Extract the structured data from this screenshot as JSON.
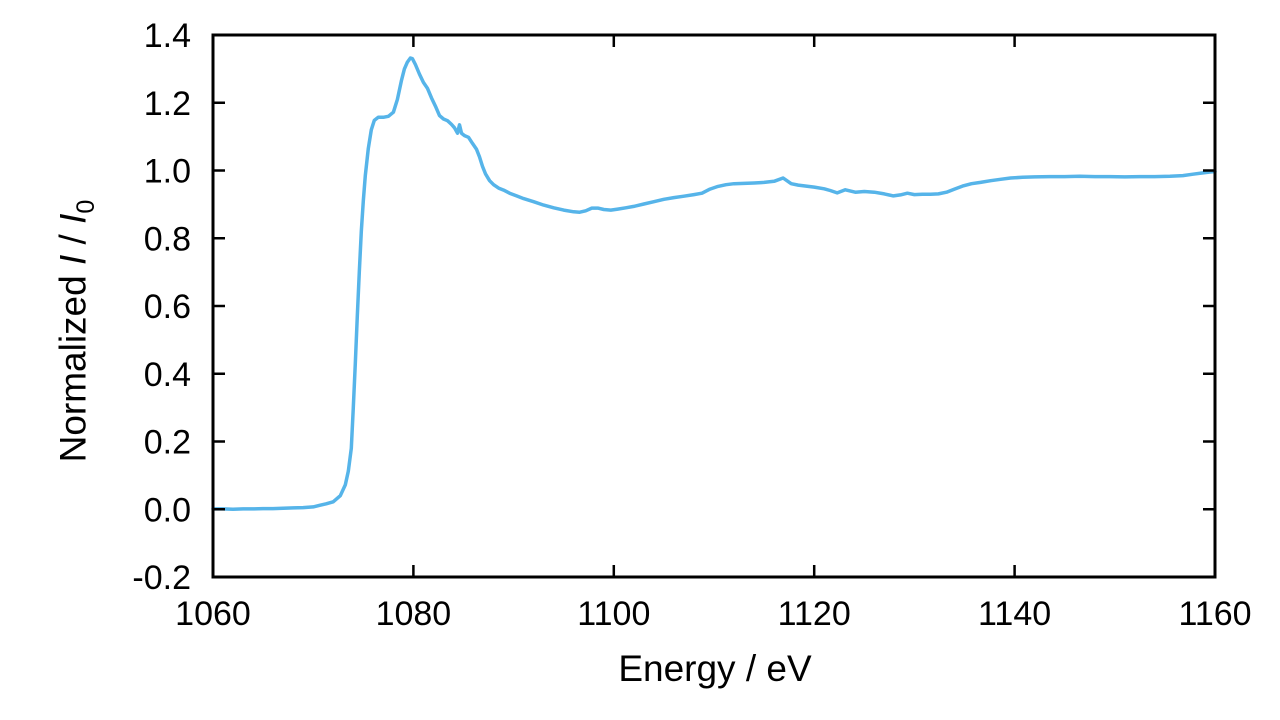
{
  "figure": {
    "background": "#ffffff",
    "xlabel": "Energy / eV",
    "ylabel_parts": {
      "prefix": "Normalized ",
      "i1": "I",
      "slash": " / ",
      "i2": "I",
      "sub": "0"
    }
  },
  "chart_data": {
    "type": "line",
    "title": "",
    "xlabel": "Energy / eV",
    "ylabel": "Normalized I / I0",
    "xlim": [
      1060,
      1160
    ],
    "ylim": [
      -0.2,
      1.4
    ],
    "x_ticks": [
      1060,
      1080,
      1100,
      1120,
      1140,
      1160
    ],
    "y_ticks": [
      -0.2,
      0.0,
      0.2,
      0.4,
      0.6,
      0.8,
      1.0,
      1.2,
      1.4
    ],
    "grid": false,
    "legend": "none",
    "line_color": "#56B4E9",
    "frame_color": "#000000",
    "series": [
      {
        "name": "normalized-absorption-spectrum",
        "points": [
          [
            1060.0,
            0.001
          ],
          [
            1061.0,
            0.001
          ],
          [
            1062.0,
            0.0
          ],
          [
            1063.0,
            0.001
          ],
          [
            1064.0,
            0.001
          ],
          [
            1065.0,
            0.002
          ],
          [
            1066.0,
            0.002
          ],
          [
            1067.0,
            0.003
          ],
          [
            1068.0,
            0.004
          ],
          [
            1069.0,
            0.005
          ],
          [
            1070.0,
            0.007
          ],
          [
            1070.7,
            0.012
          ],
          [
            1071.3,
            0.016
          ],
          [
            1072.0,
            0.022
          ],
          [
            1072.7,
            0.04
          ],
          [
            1073.2,
            0.072
          ],
          [
            1073.5,
            0.112
          ],
          [
            1073.8,
            0.18
          ],
          [
            1074.0,
            0.3
          ],
          [
            1074.2,
            0.43
          ],
          [
            1074.4,
            0.57
          ],
          [
            1074.6,
            0.7
          ],
          [
            1074.8,
            0.82
          ],
          [
            1075.0,
            0.91
          ],
          [
            1075.2,
            0.985
          ],
          [
            1075.5,
            1.065
          ],
          [
            1075.8,
            1.12
          ],
          [
            1076.1,
            1.148
          ],
          [
            1076.5,
            1.157
          ],
          [
            1077.0,
            1.157
          ],
          [
            1077.5,
            1.16
          ],
          [
            1078.0,
            1.172
          ],
          [
            1078.4,
            1.21
          ],
          [
            1078.8,
            1.265
          ],
          [
            1079.1,
            1.3
          ],
          [
            1079.4,
            1.32
          ],
          [
            1079.7,
            1.332
          ],
          [
            1079.9,
            1.33
          ],
          [
            1080.2,
            1.313
          ],
          [
            1080.6,
            1.285
          ],
          [
            1081.0,
            1.26
          ],
          [
            1081.4,
            1.243
          ],
          [
            1081.8,
            1.215
          ],
          [
            1082.2,
            1.19
          ],
          [
            1082.6,
            1.162
          ],
          [
            1083.0,
            1.152
          ],
          [
            1083.4,
            1.147
          ],
          [
            1083.8,
            1.136
          ],
          [
            1084.1,
            1.126
          ],
          [
            1084.4,
            1.11
          ],
          [
            1084.6,
            1.135
          ],
          [
            1084.8,
            1.11
          ],
          [
            1085.1,
            1.103
          ],
          [
            1085.5,
            1.098
          ],
          [
            1085.9,
            1.08
          ],
          [
            1086.3,
            1.063
          ],
          [
            1086.6,
            1.04
          ],
          [
            1086.9,
            1.012
          ],
          [
            1087.2,
            0.99
          ],
          [
            1087.6,
            0.97
          ],
          [
            1088.0,
            0.958
          ],
          [
            1088.5,
            0.948
          ],
          [
            1089.0,
            0.942
          ],
          [
            1089.6,
            0.933
          ],
          [
            1090.3,
            0.925
          ],
          [
            1091.0,
            0.917
          ],
          [
            1092.0,
            0.908
          ],
          [
            1093.0,
            0.898
          ],
          [
            1094.0,
            0.89
          ],
          [
            1095.0,
            0.883
          ],
          [
            1096.0,
            0.878
          ],
          [
            1096.6,
            0.877
          ],
          [
            1097.2,
            0.881
          ],
          [
            1097.8,
            0.889
          ],
          [
            1098.4,
            0.889
          ],
          [
            1099.0,
            0.885
          ],
          [
            1099.7,
            0.883
          ],
          [
            1100.4,
            0.886
          ],
          [
            1101.2,
            0.89
          ],
          [
            1102.0,
            0.894
          ],
          [
            1103.0,
            0.901
          ],
          [
            1104.0,
            0.908
          ],
          [
            1105.0,
            0.915
          ],
          [
            1106.0,
            0.92
          ],
          [
            1107.0,
            0.924
          ],
          [
            1108.0,
            0.929
          ],
          [
            1108.8,
            0.933
          ],
          [
            1109.6,
            0.945
          ],
          [
            1110.4,
            0.953
          ],
          [
            1111.2,
            0.958
          ],
          [
            1112.0,
            0.961
          ],
          [
            1113.0,
            0.962
          ],
          [
            1114.0,
            0.963
          ],
          [
            1115.0,
            0.965
          ],
          [
            1116.0,
            0.968
          ],
          [
            1116.9,
            0.978
          ],
          [
            1117.7,
            0.961
          ],
          [
            1118.4,
            0.957
          ],
          [
            1119.2,
            0.954
          ],
          [
            1120.0,
            0.951
          ],
          [
            1121.0,
            0.946
          ],
          [
            1121.6,
            0.941
          ],
          [
            1122.3,
            0.934
          ],
          [
            1123.1,
            0.943
          ],
          [
            1124.1,
            0.936
          ],
          [
            1125.0,
            0.938
          ],
          [
            1126.0,
            0.936
          ],
          [
            1127.0,
            0.931
          ],
          [
            1127.9,
            0.925
          ],
          [
            1128.6,
            0.928
          ],
          [
            1129.3,
            0.933
          ],
          [
            1130.0,
            0.929
          ],
          [
            1130.8,
            0.93
          ],
          [
            1131.6,
            0.93
          ],
          [
            1132.4,
            0.931
          ],
          [
            1133.2,
            0.936
          ],
          [
            1134.0,
            0.945
          ],
          [
            1134.8,
            0.954
          ],
          [
            1135.7,
            0.961
          ],
          [
            1136.6,
            0.965
          ],
          [
            1137.6,
            0.97
          ],
          [
            1138.6,
            0.974
          ],
          [
            1139.6,
            0.978
          ],
          [
            1140.8,
            0.98
          ],
          [
            1142.0,
            0.981
          ],
          [
            1143.5,
            0.982
          ],
          [
            1145.0,
            0.982
          ],
          [
            1146.5,
            0.983
          ],
          [
            1148.0,
            0.982
          ],
          [
            1149.5,
            0.982
          ],
          [
            1151.0,
            0.981
          ],
          [
            1152.5,
            0.982
          ],
          [
            1154.0,
            0.982
          ],
          [
            1155.5,
            0.983
          ],
          [
            1156.8,
            0.985
          ],
          [
            1157.8,
            0.989
          ],
          [
            1158.8,
            0.993
          ],
          [
            1159.6,
            0.996
          ],
          [
            1160.0,
            0.997
          ]
        ]
      }
    ]
  }
}
